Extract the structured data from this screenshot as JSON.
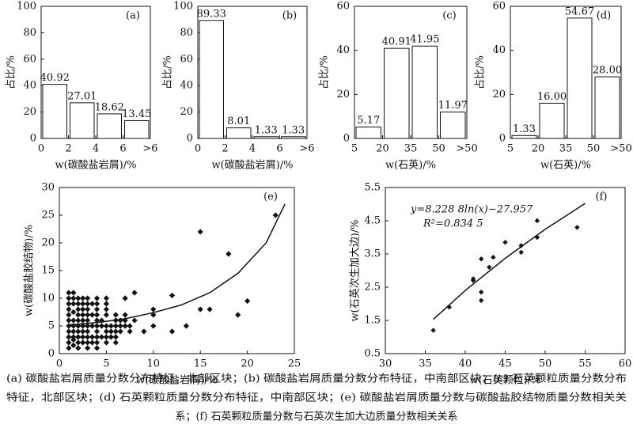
{
  "chart_data": [
    {
      "type": "histogram",
      "label": "(a)",
      "xlabel": "w(碳酸盐岩屑)/%",
      "ylabel": "占比/%",
      "bins": [
        0,
        2,
        4,
        6,
        ">6"
      ],
      "values": [
        40.92,
        27.01,
        18.62,
        13.45
      ],
      "ylim": [
        0,
        100
      ],
      "yticks": [
        0,
        20,
        40,
        60,
        80,
        100
      ]
    },
    {
      "type": "histogram",
      "label": "(b)",
      "xlabel": "w(碳酸盐岩屑)/%",
      "ylabel": "占比/%",
      "bins": [
        0,
        2,
        4,
        6,
        ">6"
      ],
      "values": [
        89.33,
        8.01,
        1.33,
        1.33
      ],
      "ylim": [
        0,
        100
      ],
      "yticks": [
        0,
        20,
        40,
        60,
        80,
        100
      ]
    },
    {
      "type": "histogram",
      "label": "(c)",
      "xlabel": "w(石英)/%",
      "ylabel": "占比/%",
      "bins": [
        5,
        20,
        35,
        50,
        ">50"
      ],
      "values": [
        5.17,
        40.91,
        41.95,
        11.97
      ],
      "ylim": [
        0,
        60
      ],
      "yticks": [
        0,
        20,
        40,
        60
      ]
    },
    {
      "type": "histogram",
      "label": "(d)",
      "xlabel": "w(石英)/%",
      "ylabel": "占比/%",
      "bins": [
        5,
        20,
        35,
        50,
        ">50"
      ],
      "values": [
        1.33,
        16.0,
        54.67,
        28.0
      ],
      "value_labels": [
        "1.33",
        "16.00",
        "54.67",
        "28.00"
      ],
      "ylim": [
        0,
        60
      ],
      "yticks": [
        0,
        20,
        40,
        60
      ]
    },
    {
      "type": "scatter",
      "label": "(e)",
      "xlabel": "w(碳酸盐岩屑)/%",
      "ylabel": "w(碳酸盐胶结物)/%",
      "x": [
        1,
        1,
        1,
        1,
        1,
        1,
        1,
        1,
        1,
        1,
        1,
        1.5,
        1.5,
        1.5,
        1.5,
        1.5,
        1.5,
        1.5,
        1.5,
        1.5,
        1.5,
        2,
        2,
        2,
        2,
        2,
        2,
        2,
        2,
        2,
        2,
        2.5,
        2.5,
        2.5,
        2.5,
        2.5,
        2.5,
        2.5,
        2.5,
        2.5,
        3,
        3,
        3,
        3,
        3,
        3,
        3,
        3,
        3,
        3,
        3.5,
        3.5,
        3.5,
        3.5,
        3.5,
        4,
        4,
        4,
        4,
        4,
        4,
        4,
        4,
        4,
        4,
        4.5,
        4.5,
        4.5,
        5,
        5,
        5,
        5,
        5,
        5,
        5,
        5,
        5.5,
        5.5,
        5.5,
        6,
        6,
        6,
        6,
        6,
        6,
        6.5,
        6.5,
        6.5,
        7,
        7,
        7,
        7,
        7.5,
        7.5,
        8,
        8,
        9,
        10,
        10,
        10,
        12,
        12,
        13.5,
        15,
        15,
        16,
        18,
        19,
        20,
        23
      ],
      "y": [
        1,
        2,
        3,
        4,
        5,
        6,
        7,
        8,
        9,
        10,
        11,
        1.5,
        2.5,
        3,
        4,
        5,
        6,
        7.5,
        9,
        10,
        11,
        1,
        2,
        3,
        4,
        5,
        6,
        7,
        8,
        9,
        10,
        2,
        3,
        4,
        5,
        6,
        7,
        8,
        9,
        10,
        1,
        2,
        3,
        4,
        5,
        6,
        7,
        8,
        9,
        10,
        2,
        3,
        5,
        7,
        9,
        1,
        2,
        3,
        4,
        5,
        6,
        7,
        8,
        9,
        10,
        3,
        5,
        6,
        2,
        3,
        4,
        5,
        7,
        8,
        9,
        10,
        3,
        4,
        5,
        2,
        3,
        4,
        5,
        6,
        7,
        4,
        5,
        6,
        5,
        6,
        7,
        10,
        4,
        5,
        6,
        11,
        4,
        5,
        7,
        8,
        4,
        10.5,
        5,
        8,
        22,
        8,
        18,
        7,
        9.5,
        25
      ],
      "fit": {
        "x": [
          1,
          4,
          7,
          10,
          13,
          16,
          19,
          22,
          24
        ],
        "y": [
          5.2,
          5.6,
          6.3,
          7.4,
          8.8,
          11,
          14.5,
          20,
          27
        ]
      },
      "xlim": [
        0,
        25
      ],
      "xticks": [
        0,
        5,
        10,
        15,
        20,
        25
      ],
      "ylim": [
        0,
        30
      ],
      "yticks": [
        0,
        5,
        10,
        15,
        20,
        25,
        30
      ]
    },
    {
      "type": "scatter",
      "label": "(f)",
      "xlabel": "w(石英颗粒)/%",
      "ylabel": "w(石英次生加大边)/%",
      "annotations": [
        "y=8.228 8ln(x)−27.957",
        "R²=0.834 5"
      ],
      "x": [
        36,
        38,
        41,
        41,
        42,
        42,
        42,
        43,
        43.5,
        45,
        47,
        47,
        49,
        49,
        54
      ],
      "y": [
        1.2,
        1.9,
        2.7,
        2.75,
        2.1,
        2.35,
        3.35,
        3.1,
        3.4,
        3.85,
        3.55,
        3.75,
        4.0,
        4.5,
        4.3
      ],
      "fit": {
        "x": [
          36,
          40,
          45,
          50,
          55
        ],
        "y": [
          1.53,
          2.4,
          3.37,
          4.24,
          5.02
        ]
      },
      "xlim": [
        30,
        60
      ],
      "xticks": [
        30,
        35,
        40,
        45,
        50,
        55,
        60
      ],
      "ylim": [
        0.5,
        5.5
      ],
      "yticks": [
        0.5,
        1.5,
        2.5,
        3.5,
        4.5,
        5.5
      ]
    }
  ],
  "caption": [
    "(a) 碳酸盐岩屑质量分数分布特征，北部区块；(b) 碳酸盐岩屑质量分数分布特征，中南部区块；(c) 石英颗粒质量分数分布",
    "特征，北部区块；(d) 石英颗粒质量分数分布特征，中南部区块；(e) 碳酸盐岩屑质量分数与碳酸盐胶结物质量分数相关关",
    "系；(f) 石英颗粒质量分数与石英次生加大边质量分数相关关系"
  ]
}
